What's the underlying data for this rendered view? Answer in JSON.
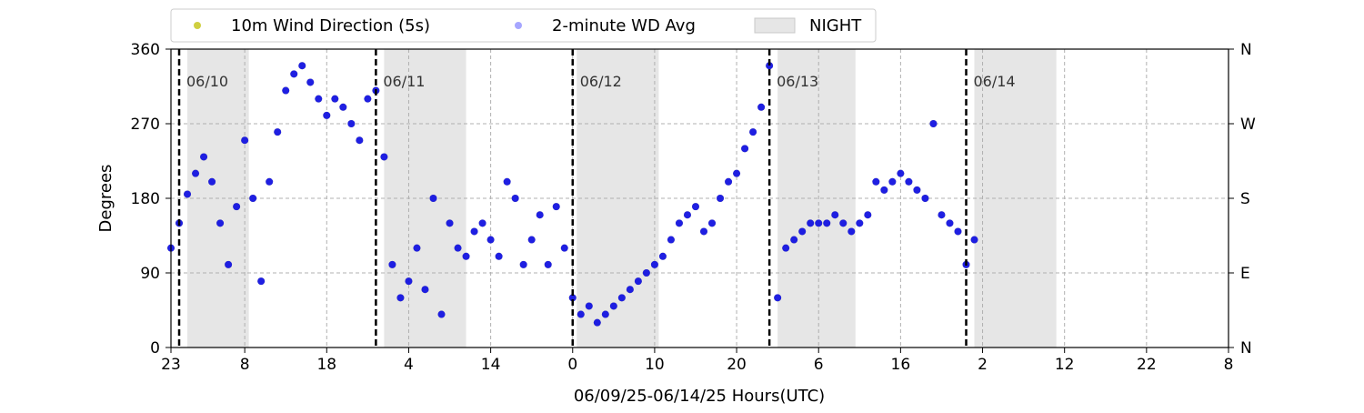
{
  "chart_data": {
    "type": "scatter",
    "title": "",
    "xlabel": "06/09/25-06/14/25  Hours(UTC)",
    "ylabel": "Degrees",
    "x_unit": "hours",
    "xlim": [
      0,
      129
    ],
    "ylim": [
      0,
      360
    ],
    "x_tick_values": [
      0,
      9,
      19,
      29,
      39,
      49,
      59,
      69,
      79,
      89,
      99,
      109,
      119,
      129
    ],
    "x_tick_labels": [
      "23",
      "8",
      "18",
      "4",
      "14",
      "0",
      "10",
      "20",
      "6",
      "16",
      "2",
      "12",
      "22",
      "8"
    ],
    "y_ticks": [
      0,
      90,
      180,
      270,
      360
    ],
    "y_tick_labels": [
      "0",
      "90",
      "180",
      "270",
      "360"
    ],
    "y2_ticks": [
      0,
      90,
      180,
      270,
      360
    ],
    "y2_tick_labels": [
      "N",
      "E",
      "S",
      "W",
      "N"
    ],
    "grid": true,
    "legend_position": "top-left, above plot",
    "legend": [
      {
        "label": "10m Wind Direction (5s)",
        "kind": "marker",
        "color": "#bfbf00"
      },
      {
        "label": "2-minute WD Avg",
        "kind": "marker",
        "color": "#0000ff"
      },
      {
        "label": "NIGHT",
        "kind": "patch",
        "color": "#e6e6e6"
      }
    ],
    "day_markers": [
      {
        "x": 1,
        "label": "06/10"
      },
      {
        "x": 25,
        "label": "06/11"
      },
      {
        "x": 49,
        "label": "06/12"
      },
      {
        "x": 73,
        "label": "06/13"
      },
      {
        "x": 97,
        "label": "06/14"
      }
    ],
    "night_periods": [
      [
        2,
        9.5
      ],
      [
        26,
        36
      ],
      [
        49.5,
        59.5
      ],
      [
        74,
        83.5
      ],
      [
        98,
        108
      ]
    ],
    "series": [
      {
        "name": "10m Wind Direction (5s)",
        "color": "#bfbf00",
        "x": [
          0,
          1,
          2,
          3,
          4,
          5,
          6,
          7,
          8,
          9,
          10,
          11,
          12,
          13,
          14,
          15,
          16,
          17,
          18,
          19,
          20,
          21,
          22,
          23,
          24,
          25,
          26,
          27,
          28,
          29,
          30,
          31,
          32,
          33,
          34,
          35,
          36,
          37,
          38,
          39,
          40,
          41,
          42,
          43,
          44,
          45,
          46,
          47,
          48,
          49,
          50,
          51,
          52,
          53,
          54,
          55,
          56,
          57,
          58,
          59,
          60,
          61,
          62,
          63,
          64,
          65,
          66,
          67,
          68,
          69,
          70,
          71,
          72,
          73,
          74,
          75,
          76,
          77,
          78,
          79,
          80,
          81,
          82,
          83,
          84,
          85,
          86,
          87,
          88,
          89,
          90,
          91,
          92,
          93,
          94,
          95,
          96,
          97,
          98
        ],
        "y": [
          120,
          150,
          185,
          210,
          230,
          200,
          150,
          100,
          170,
          250,
          180,
          80,
          200,
          260,
          310,
          330,
          340,
          320,
          300,
          280,
          300,
          290,
          270,
          250,
          300,
          310,
          230,
          100,
          60,
          80,
          120,
          70,
          180,
          40,
          150,
          120,
          110,
          140,
          150,
          130,
          110,
          200,
          180,
          100,
          130,
          160,
          100,
          170,
          120,
          60,
          40,
          50,
          30,
          40,
          50,
          60,
          70,
          80,
          90,
          100,
          110,
          130,
          150,
          160,
          170,
          140,
          150,
          180,
          200,
          210,
          240,
          260,
          290,
          340,
          60,
          120,
          130,
          140,
          150,
          150,
          150,
          160,
          150,
          140,
          150,
          160,
          200,
          190,
          200,
          210,
          200,
          190,
          180,
          270,
          160,
          150,
          140,
          100,
          130
        ]
      },
      {
        "name": "2-minute WD Avg",
        "color": "#0000ff",
        "x": [
          0,
          1,
          2,
          3,
          4,
          5,
          6,
          7,
          8,
          9,
          10,
          11,
          12,
          13,
          14,
          15,
          16,
          17,
          18,
          19,
          20,
          21,
          22,
          23,
          24,
          25,
          26,
          27,
          28,
          29,
          30,
          31,
          32,
          33,
          34,
          35,
          36,
          37,
          38,
          39,
          40,
          41,
          42,
          43,
          44,
          45,
          46,
          47,
          48,
          49,
          50,
          51,
          52,
          53,
          54,
          55,
          56,
          57,
          58,
          59,
          60,
          61,
          62,
          63,
          64,
          65,
          66,
          67,
          68,
          69,
          70,
          71,
          72,
          73,
          74,
          75,
          76,
          77,
          78,
          79,
          80,
          81,
          82,
          83,
          84,
          85,
          86,
          87,
          88,
          89,
          90,
          91,
          92,
          93,
          94,
          95,
          96,
          97,
          98
        ],
        "y": [
          120,
          150,
          185,
          210,
          230,
          200,
          150,
          100,
          170,
          250,
          180,
          80,
          200,
          260,
          310,
          330,
          340,
          320,
          300,
          280,
          300,
          290,
          270,
          250,
          300,
          310,
          230,
          100,
          60,
          80,
          120,
          70,
          180,
          40,
          150,
          120,
          110,
          140,
          150,
          130,
          110,
          200,
          180,
          100,
          130,
          160,
          100,
          170,
          120,
          60,
          40,
          50,
          30,
          40,
          50,
          60,
          70,
          80,
          90,
          100,
          110,
          130,
          150,
          160,
          170,
          140,
          150,
          180,
          200,
          210,
          240,
          260,
          290,
          340,
          60,
          120,
          130,
          140,
          150,
          150,
          150,
          160,
          150,
          140,
          150,
          160,
          200,
          190,
          200,
          210,
          200,
          190,
          180,
          270,
          160,
          150,
          140,
          100,
          130
        ]
      }
    ]
  }
}
